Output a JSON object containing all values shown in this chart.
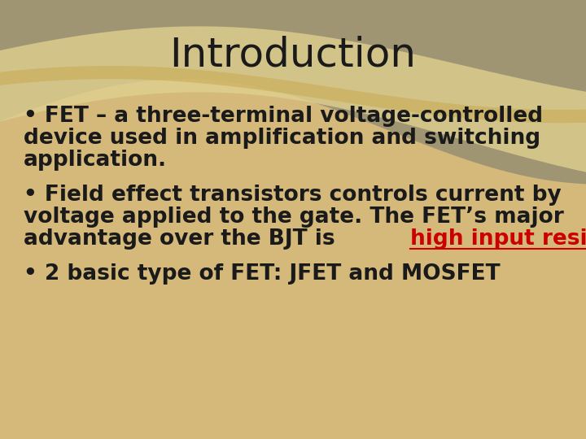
{
  "title": "Introduction",
  "title_fontsize": 36,
  "title_color": "#1a1a1a",
  "title_font": "DejaVu Sans",
  "bg_color_main": "#d4b97a",
  "bullet1_line1": "• FET – a three-terminal voltage-controlled",
  "bullet1_line2": "device used in amplification and switching",
  "bullet1_line3": "application.",
  "bullet2_line1": "• Field effect transistors controls current by",
  "bullet2_line2": "voltage applied to the gate. The FET’s major",
  "bullet2_line3_before": "advantage over the BJT is ",
  "bullet2_line3_link": "high input resistance",
  "bullet2_line3_after": ".",
  "bullet3": "• 2 basic type of FET: JFET and MOSFET",
  "text_color": "#1a1a1a",
  "link_color": "#cc0000",
  "text_fontsize": 19,
  "text_font": "DejaVu Sans"
}
